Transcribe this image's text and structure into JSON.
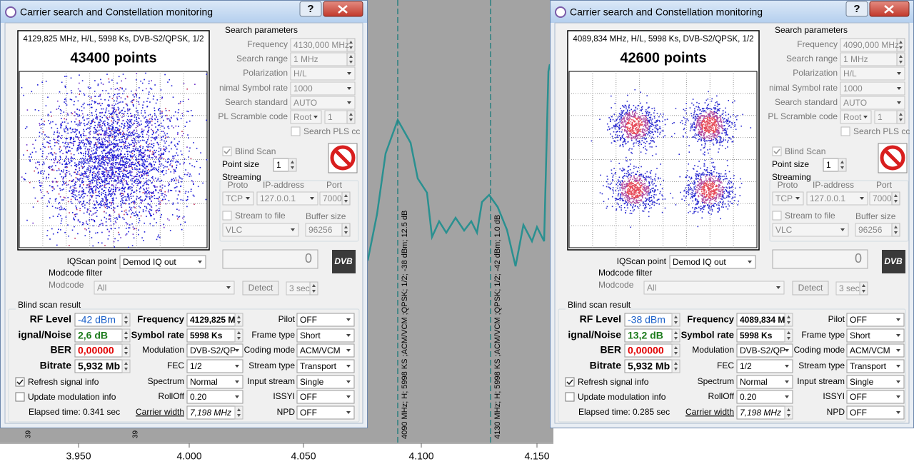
{
  "spectrum": {
    "x_labels": [
      "3.950",
      "4.000",
      "4.050",
      "4.100",
      "4.150"
    ],
    "markers": [
      "4090 MHz; H; 5998 KS ;ACM/VCM ;QPSK; 1/2; -38 dBm; 12.5 dB",
      "4130 MHz; H; 5998 KS ;ACM/VCM ;QPSK; 1/2; -42 dBm; 1.0 dB"
    ],
    "edge_labels": [
      "39",
      "39"
    ]
  },
  "windows": [
    {
      "title": "Carrier search and Constellation monitoring",
      "help": "?",
      "info": "4129,825 MHz, H/L, 5998 Ks, DVB-S2/QPSK, 1/2",
      "points": "43400 points",
      "search": {
        "title": "Search parameters",
        "rows": [
          {
            "label": "Frequency",
            "value": "4130,000 MHz"
          },
          {
            "label": "Search range",
            "value": "1 MHz"
          },
          {
            "label": "Polarization",
            "value": "H/L"
          },
          {
            "label": "nimal Symbol rate",
            "value": "1000"
          },
          {
            "label": "Search standard",
            "value": "AUTO"
          }
        ],
        "pl_label": "PL Scramble code",
        "pl_root": "Root",
        "pl_num": "1",
        "pls": "Search PLS cc"
      },
      "blind_scan": "Blind Scan",
      "point_size_label": "Point size",
      "point_size": "1",
      "streaming": {
        "title": "Streaming",
        "headers": [
          "Proto",
          "IP-address",
          "Port"
        ],
        "proto": "TCP",
        "ip": "127.0.0.1",
        "port": "7000",
        "stream_to_file": "Stream to file",
        "buffer_label": "Buffer size",
        "player": "VLC",
        "buffer": "96256"
      },
      "lcd": "0",
      "logo": "DVB",
      "iq_label": "IQScan point",
      "iq_value": "Demod IQ out",
      "modcode": {
        "title": "Modcode filter",
        "label": "Modcode",
        "value": "All",
        "detect": "Detect",
        "sec": "3 sec"
      },
      "result": {
        "title": "Blind scan result",
        "col1": [
          {
            "label": "RF Level",
            "value": "-42 dBm"
          },
          {
            "label": "ignal/Noise",
            "value": "2,6 dB"
          },
          {
            "label": "BER",
            "value": "0,00000"
          },
          {
            "label": "Bitrate",
            "value": "5,932 Mb"
          }
        ],
        "col2": [
          {
            "label": "Frequency",
            "value": "4129,825 M"
          },
          {
            "label": "Symbol rate",
            "value": "5998 Ks"
          },
          {
            "label": "Modulation",
            "value": "DVB-S2/QP"
          },
          {
            "label": "FEC",
            "value": "1/2"
          },
          {
            "label": "Spectrum",
            "value": "Normal"
          },
          {
            "label": "RollOff",
            "value": "0.20"
          },
          {
            "label": "Carrier width",
            "value": "7,198 MHz"
          }
        ],
        "col3": [
          {
            "label": "Pilot",
            "value": "OFF"
          },
          {
            "label": "Frame type",
            "value": "Short"
          },
          {
            "label": "Coding mode",
            "value": "ACM/VCM"
          },
          {
            "label": "Stream type",
            "value": "Transport"
          },
          {
            "label": "Input stream",
            "value": "Single"
          },
          {
            "label": "ISSYI",
            "value": "OFF"
          },
          {
            "label": "NPD",
            "value": "OFF"
          }
        ],
        "refresh": "Refresh signal info",
        "update": "Update modulation info",
        "elapsed": "Elapsed time: 0.341 sec"
      }
    },
    {
      "title": "Carrier search and Constellation monitoring",
      "help": "?",
      "info": "4089,834 MHz, H/L, 5998 Ks, DVB-S2/QPSK, 1/2",
      "points": "42600 points",
      "search": {
        "title": "Search parameters",
        "rows": [
          {
            "label": "Frequency",
            "value": "4090,000 MHz"
          },
          {
            "label": "Search range",
            "value": "1 MHz"
          },
          {
            "label": "Polarization",
            "value": "H/L"
          },
          {
            "label": "nimal Symbol rate",
            "value": "1000"
          },
          {
            "label": "Search standard",
            "value": "AUTO"
          }
        ],
        "pl_label": "PL Scramble code",
        "pl_root": "Root",
        "pl_num": "1",
        "pls": "Search PLS cc"
      },
      "blind_scan": "Blind Scan",
      "point_size_label": "Point size",
      "point_size": "1",
      "streaming": {
        "title": "Streaming",
        "headers": [
          "Proto",
          "IP-address",
          "Port"
        ],
        "proto": "TCP",
        "ip": "127.0.0.1",
        "port": "7000",
        "stream_to_file": "Stream to file",
        "buffer_label": "Buffer size",
        "player": "VLC",
        "buffer": "96256"
      },
      "lcd": "0",
      "logo": "DVB",
      "iq_label": "IQScan point",
      "iq_value": "Demod IQ out",
      "modcode": {
        "title": "Modcode filter",
        "label": "Modcode",
        "value": "All",
        "detect": "Detect",
        "sec": "3 sec"
      },
      "result": {
        "title": "Blind scan result",
        "col1": [
          {
            "label": "RF Level",
            "value": "-38 dBm"
          },
          {
            "label": "ignal/Noise",
            "value": "13,2 dB"
          },
          {
            "label": "BER",
            "value": "0,00000"
          },
          {
            "label": "Bitrate",
            "value": "5,932 Mb"
          }
        ],
        "col2": [
          {
            "label": "Frequency",
            "value": "4089,834 M"
          },
          {
            "label": "Symbol rate",
            "value": "5998 Ks"
          },
          {
            "label": "Modulation",
            "value": "DVB-S2/QP"
          },
          {
            "label": "FEC",
            "value": "1/2"
          },
          {
            "label": "Spectrum",
            "value": "Normal"
          },
          {
            "label": "RollOff",
            "value": "0.20"
          },
          {
            "label": "Carrier width",
            "value": "7,198 MHz"
          }
        ],
        "col3": [
          {
            "label": "Pilot",
            "value": "OFF"
          },
          {
            "label": "Frame type",
            "value": "Short"
          },
          {
            "label": "Coding mode",
            "value": "ACM/VCM"
          },
          {
            "label": "Stream type",
            "value": "Transport"
          },
          {
            "label": "Input stream",
            "value": "Single"
          },
          {
            "label": "ISSYI",
            "value": "OFF"
          },
          {
            "label": "NPD",
            "value": "OFF"
          }
        ],
        "refresh": "Refresh signal info",
        "update": "Update modulation info",
        "elapsed": "Elapsed time: 0.285 sec"
      }
    }
  ]
}
